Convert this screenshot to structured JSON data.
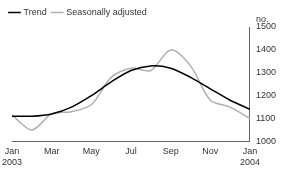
{
  "chart_data": {
    "type": "line",
    "y_label": "no.",
    "categories": [
      "Jan 2003",
      null,
      "Mar",
      null,
      "May",
      null,
      "Jul",
      null,
      "Sep",
      null,
      "Nov",
      null,
      "Jan 2004"
    ],
    "series": [
      {
        "name": "Trend",
        "color": "#000000",
        "values": [
          1110,
          1110,
          1120,
          1150,
          1200,
          1260,
          1310,
          1330,
          1320,
          1280,
          1230,
          1180,
          1140
        ]
      },
      {
        "name": "Seasonally adjusted",
        "color": "#b0b0b0",
        "values": [
          1115,
          1050,
          1120,
          1130,
          1160,
          1280,
          1320,
          1310,
          1400,
          1330,
          1180,
          1150,
          1100
        ]
      }
    ],
    "ylim": [
      1000,
      1500
    ],
    "yticks": [
      1000,
      1100,
      1200,
      1300,
      1400,
      1500
    ],
    "grid": false,
    "legend": "top-left"
  }
}
